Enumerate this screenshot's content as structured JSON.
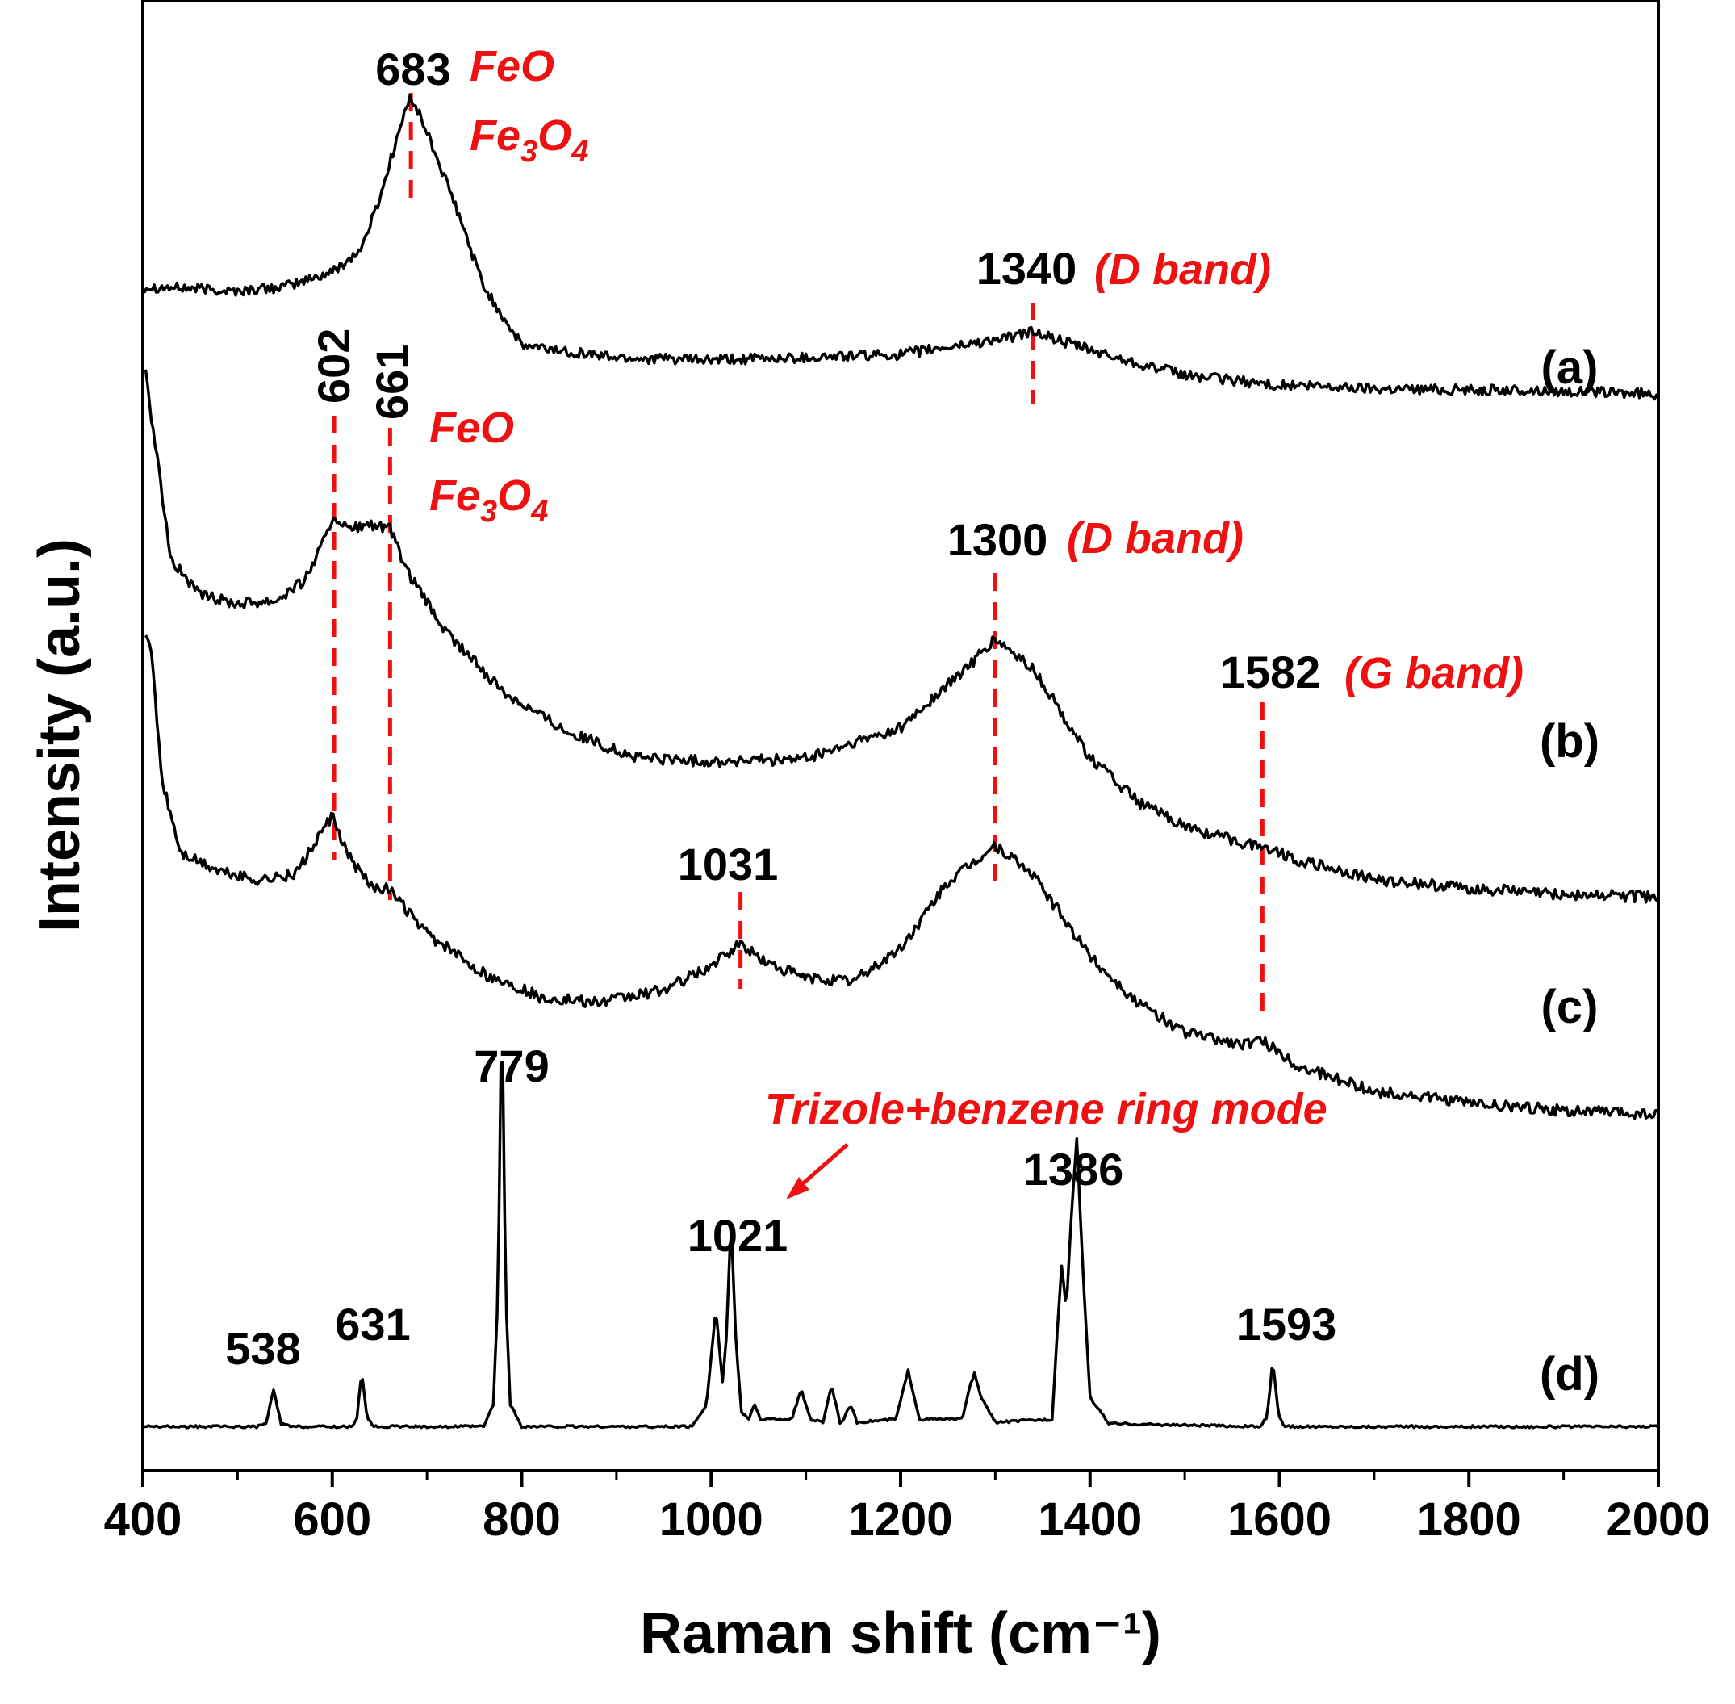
{
  "chart_data": {
    "type": "line",
    "title": "",
    "xlabel": "Raman shift (cm⁻¹)",
    "ylabel": "Intensity (a.u.)",
    "xlim": [
      400,
      2000
    ],
    "ylim": [
      0,
      100
    ],
    "x_ticks": [
      "400",
      "600",
      "800",
      "1000",
      "1200",
      "1400",
      "1600",
      "1800",
      "2000"
    ],
    "grid": false,
    "legend": "none",
    "colors": {
      "curve": "#000000",
      "marker": "#ee1111"
    },
    "series": [
      {
        "name": "(a)",
        "x": [
          400,
          450,
          500,
          550,
          600,
          630,
          650,
          670,
          683,
          700,
          730,
          760,
          800,
          900,
          1000,
          1100,
          1200,
          1280,
          1320,
          1340,
          1360,
          1420,
          1500,
          1600,
          1700,
          1800,
          1900,
          2000
        ],
        "values": [
          80.5,
          80.4,
          80.2,
          80.5,
          81.5,
          83,
          86.5,
          91,
          93.5,
          91,
          86,
          80.5,
          76.5,
          75.7,
          75.5,
          75.7,
          75.9,
          76.7,
          77.1,
          77.5,
          77.0,
          75.8,
          74.5,
          73.8,
          73.6,
          73.5,
          73.4,
          73.2
        ]
      },
      {
        "name": "(b)",
        "x": [
          403,
          410,
          430,
          460,
          500,
          540,
          570,
          590,
          602,
          615,
          640,
          661,
          680,
          720,
          780,
          850,
          920,
          1000,
          1100,
          1200,
          1260,
          1300,
          1340,
          1400,
          1450,
          1500,
          1560,
          1582,
          1620,
          1700,
          1800,
          1900,
          2000
        ],
        "values": [
          75,
          71,
          62,
          59.5,
          59,
          59.2,
          60.5,
          63,
          65,
          64,
          64.3,
          64,
          61,
          57,
          53,
          50.2,
          48.5,
          48.2,
          48.4,
          50.5,
          54,
          56.5,
          54.5,
          48.5,
          45.5,
          43.8,
          42.7,
          42.5,
          41.5,
          40.2,
          39.6,
          39.2,
          39.0
        ]
      },
      {
        "name": "(c)",
        "x": [
          403,
          410,
          420,
          440,
          480,
          520,
          560,
          580,
          600,
          615,
          640,
          660,
          700,
          760,
          820,
          880,
          950,
          1000,
          1031,
          1060,
          1100,
          1150,
          1200,
          1250,
          1300,
          1340,
          1400,
          1450,
          1500,
          1560,
          1582,
          1620,
          1700,
          1800,
          1900,
          2000
        ],
        "values": [
          57,
          55,
          47,
          42,
          40.8,
          40.2,
          40.5,
          42.5,
          44.5,
          42,
          39.8,
          39.5,
          36.5,
          33.8,
          32.2,
          31.8,
          32.7,
          34.3,
          35.8,
          34.5,
          33.5,
          33.3,
          35.5,
          40,
          42.5,
          40.5,
          35,
          31.8,
          29.8,
          29,
          29.2,
          27.5,
          25.8,
          25.0,
          24.5,
          24.2
        ]
      },
      {
        "name": "(d)",
        "x": [
          400,
          520,
          530,
          538,
          546,
          556,
          620,
          626,
          631,
          637,
          645,
          760,
          770,
          775,
          779,
          783,
          788,
          800,
          980,
          995,
          1005,
          1012,
          1016,
          1021,
          1026,
          1032,
          1040,
          1046,
          1052,
          1085,
          1095,
          1105,
          1118,
          1127,
          1136,
          1140,
          1147,
          1154,
          1195,
          1208,
          1220,
          1265,
          1272,
          1278,
          1285,
          1300,
          1360,
          1366,
          1370,
          1375,
          1380,
          1386,
          1393,
          1400,
          1420,
          1580,
          1587,
          1593,
          1599,
          1606,
          2000
        ],
        "values": [
          3,
          3,
          3.2,
          5.5,
          3.2,
          3,
          3,
          3.5,
          6.8,
          3.5,
          3,
          3,
          4.5,
          12,
          33,
          12,
          4.5,
          3,
          3,
          4.5,
          11,
          6,
          9,
          17,
          9,
          4,
          3.5,
          4.5,
          3.5,
          3.5,
          5.5,
          3.5,
          3.3,
          5.8,
          3.3,
          3.5,
          4.5,
          3.3,
          3.5,
          6.8,
          3.5,
          3.5,
          5.5,
          6.6,
          5.0,
          3.3,
          3.5,
          10,
          14,
          11,
          17,
          22.5,
          13,
          5,
          3.2,
          3,
          3.7,
          7.5,
          3.7,
          3,
          3
        ]
      }
    ],
    "series_labels": [
      "(a)",
      "(b)",
      "(c)",
      "(d)"
    ],
    "peak_labels": [
      "683",
      "1340",
      "602",
      "661",
      "1300",
      "1582",
      "1031",
      "779",
      "1021",
      "1386",
      "538",
      "631",
      "1593"
    ],
    "annotations": {
      "feo_1": "FeO",
      "fe3o4_1": {
        "main": "Fe",
        "sub1": "3",
        "mid": "O",
        "sub2": "4"
      },
      "d_band_1": "(D band)",
      "feo_2": "FeO",
      "fe3o4_2": {
        "main": "Fe",
        "sub1": "3",
        "mid": "O",
        "sub2": "4"
      },
      "d_band_2": "(D band)",
      "g_band": "(G band)",
      "trizole": "Trizole+benzene ring mode"
    },
    "reference_lines": [
      {
        "x": 683,
        "series": "(a)"
      },
      {
        "x": 1340,
        "series": "(a)"
      },
      {
        "x": 602,
        "series": "(b)-(c)"
      },
      {
        "x": 661,
        "series": "(b)-(c)"
      },
      {
        "x": 1300,
        "series": "(b)-(c)"
      },
      {
        "x": 1582,
        "series": "(b)-(c)"
      },
      {
        "x": 1031,
        "series": "(c)"
      }
    ]
  }
}
